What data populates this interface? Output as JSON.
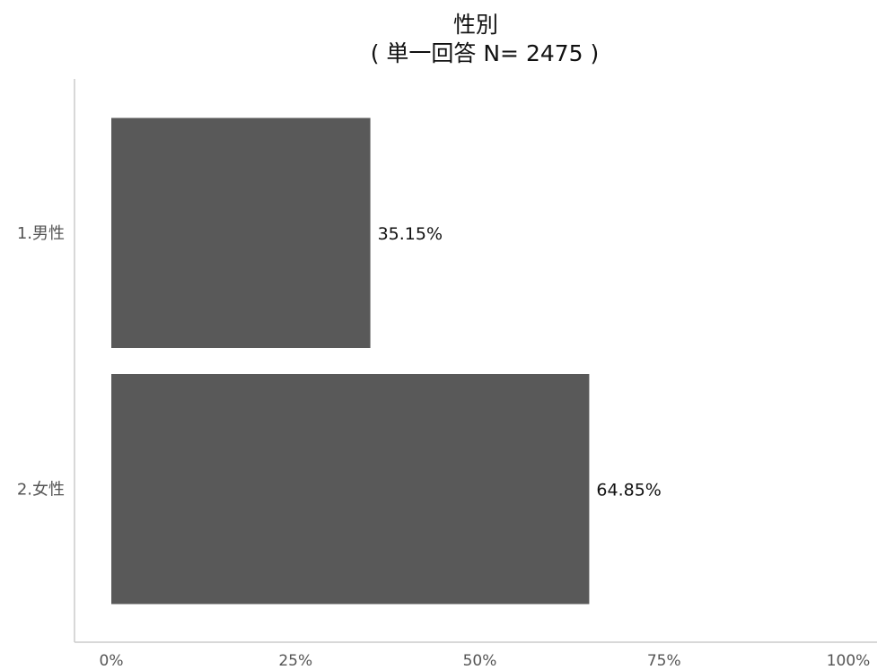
{
  "chart_data": {
    "type": "bar",
    "orientation": "horizontal",
    "title": "性別",
    "subtitle": "( 単一回答 N= 2475 )",
    "categories": [
      "1.男性",
      "2.女性"
    ],
    "values": [
      35.15,
      64.85
    ],
    "data_labels": [
      "35.15%",
      "64.85%"
    ],
    "xlim": [
      0,
      100
    ],
    "xticks": [
      0,
      25,
      50,
      75,
      100
    ],
    "xtick_labels": [
      "0%",
      "25%",
      "50%",
      "75%",
      "100%"
    ],
    "grid": false,
    "legend": "none",
    "colors": {
      "bar": "#595959"
    }
  }
}
